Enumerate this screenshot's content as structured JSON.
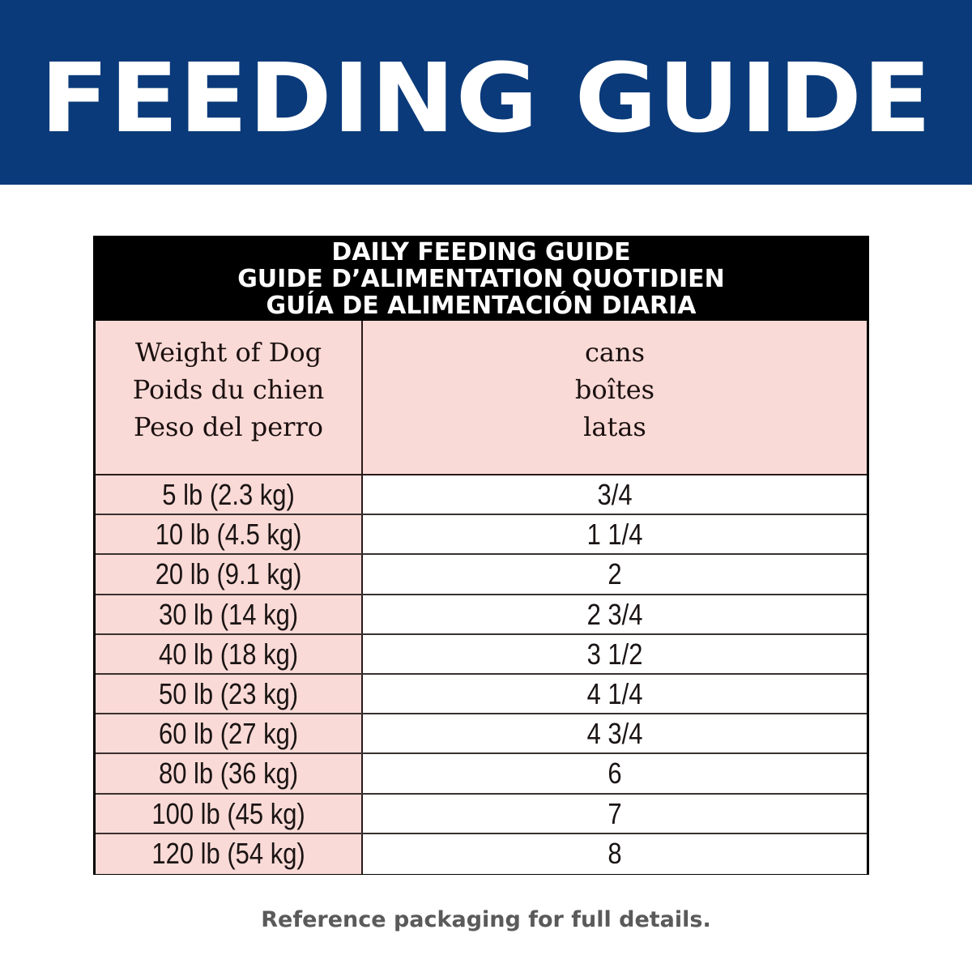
{
  "banner": {
    "title": "FEEDING GUIDE",
    "background_color": "#0a3a7a"
  },
  "table": {
    "title_lines": [
      "DAILY FEEDING GUIDE",
      "GUIDE D’ALIMENTATION QUOTIDIEN",
      "GUÍA DE ALIMENTACIÓN DIARIA"
    ],
    "header": {
      "weight": [
        "Weight of Dog",
        "Poids du chien",
        "Peso del perro"
      ],
      "amount": [
        "cans",
        "boîtes",
        "latas"
      ]
    },
    "rows": [
      {
        "weight": "5 lb (2.3 kg)",
        "cans": "3/4"
      },
      {
        "weight": "10 lb (4.5 kg)",
        "cans": "1 1/4"
      },
      {
        "weight": "20 lb (9.1 kg)",
        "cans": "2"
      },
      {
        "weight": "30 lb (14 kg)",
        "cans": "2 3/4"
      },
      {
        "weight": "40 lb (18 kg)",
        "cans": "3 1/2"
      },
      {
        "weight": "50 lb (23 kg)",
        "cans": "4 1/4"
      },
      {
        "weight": "60 lb (27 kg)",
        "cans": "4 3/4"
      },
      {
        "weight": "80 lb (36 kg)",
        "cans": "6"
      },
      {
        "weight": "100 lb (45 kg)",
        "cans": "7"
      },
      {
        "weight": "120 lb (54 kg)",
        "cans": "8"
      }
    ],
    "colors": {
      "title_bg": "#000000",
      "weight_col_bg": "#fadad6",
      "amount_col_bg": "#ffffff"
    }
  },
  "footnote": "Reference packaging for full details."
}
